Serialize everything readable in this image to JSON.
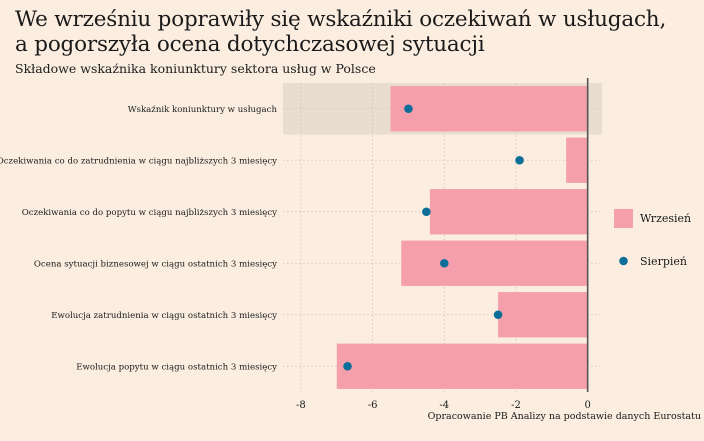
{
  "header": {
    "title_line1": "We wrześniu poprawiły się wskaźniki oczekiwań w usługach,",
    "title_line2": "a pogorszyła ocena dotychczasowej sytuacji",
    "subtitle": "Składowe wskaźnika koniunktury sektora usług w Polsce"
  },
  "caption": "Opracowanie PB Analizy na podstawie danych Eurostatu",
  "colors": {
    "bar": "#f59fac",
    "dot": "#0b6e99",
    "highlight": "#e8ddd0",
    "zero_line": "#555555",
    "grid": "#cdbfb0"
  },
  "chart_data": {
    "type": "bar",
    "orientation": "horizontal",
    "categories": [
      "Wskaźnik koniunktury w usługach",
      "Oczekiwania co do zatrudnienia w ciągu najbliższych 3 miesięcy",
      "Oczekiwania co do popytu w ciągu najbliższych 3 miesięcy",
      "Ocena sytuacji biznesowej w ciągu ostatnich 3 miesięcy",
      "Ewolucja zatrudnienia w ciągu ostatnich 3 miesięcy",
      "Ewolucja popytu w ciągu ostatnich 3 miesięcy"
    ],
    "series": [
      {
        "name": "Wrzesień",
        "kind": "bar",
        "values": [
          -5.5,
          -0.6,
          -4.4,
          -5.2,
          -2.5,
          -7.0
        ]
      },
      {
        "name": "Sierpień",
        "kind": "dot",
        "values": [
          -5.0,
          -1.9,
          -4.5,
          -4.0,
          -2.5,
          -6.7
        ]
      }
    ],
    "xlim": [
      -8.5,
      0.4
    ],
    "xticks": [
      -8,
      -6,
      -4,
      -2,
      0
    ],
    "xtick_labels": [
      "-8",
      "-6",
      "-4",
      "-2",
      "0"
    ],
    "highlighted_category": "Wskaźnik koniunktury w usługach",
    "grid": true,
    "legend_position": "right"
  }
}
